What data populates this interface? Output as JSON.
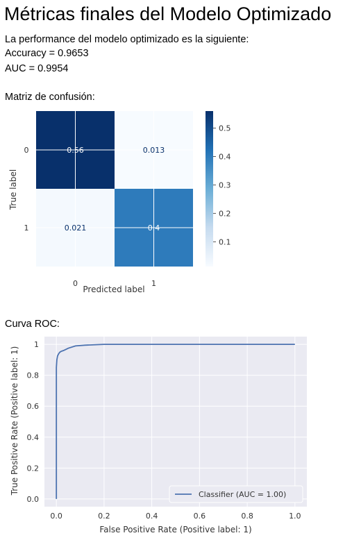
{
  "page": {
    "title": "Métricas finales del Modelo Optimizado",
    "intro": "La performance del modelo optimizado es la siguiente:",
    "accuracy_line": "Accuracy = 0.9653",
    "auc_line": "AUC = 0.9954",
    "cm_label": "Matriz de confusión:",
    "roc_label": "Curva ROC:"
  },
  "chart_data": [
    {
      "type": "heatmap",
      "xlabel": "Predicted label",
      "ylabel": "True label",
      "x_categories": [
        "0",
        "1"
      ],
      "y_categories": [
        "0",
        "1"
      ],
      "values": [
        [
          0.56,
          0.013
        ],
        [
          0.021,
          0.4
        ]
      ],
      "value_labels": [
        [
          "0.56",
          "0.013"
        ],
        [
          "0.021",
          "0.4"
        ]
      ],
      "colormap": "Blues",
      "colors": {
        "low": "#f7fbff",
        "high": "#08306b"
      },
      "colorbar": {
        "ticks": [
          0.1,
          0.2,
          0.3,
          0.4,
          0.5
        ],
        "labels": [
          "0.1",
          "0.2",
          "0.3",
          "0.4",
          "0.5"
        ],
        "range": [
          0.013,
          0.56
        ]
      },
      "grid": true
    },
    {
      "type": "line",
      "xlabel": "False Positive Rate (Positive label: 1)",
      "ylabel": "True Positive Rate (Positive label: 1)",
      "xlim": [
        -0.05,
        1.05
      ],
      "ylim": [
        -0.05,
        1.05
      ],
      "xticks": [
        0.0,
        0.2,
        0.4,
        0.6,
        0.8,
        1.0
      ],
      "xtick_labels": [
        "0.0",
        "0.2",
        "0.4",
        "0.6",
        "0.8",
        "1.0"
      ],
      "yticks": [
        0.0,
        0.2,
        0.4,
        0.6,
        0.8,
        1.0
      ],
      "ytick_labels": [
        "0.0",
        "0.2",
        "0.4",
        "0.6",
        "0.8",
        "1"
      ],
      "grid": true,
      "background": "#eaeaf2",
      "legend": {
        "position": "bottom-right",
        "entries": [
          "Classifier (AUC = 1.00)"
        ]
      },
      "series": [
        {
          "name": "Classifier (AUC = 1.00)",
          "color": "#4c72b0",
          "x": [
            0.0,
            0.0,
            0.002,
            0.005,
            0.01,
            0.015,
            0.02,
            0.03,
            0.05,
            0.08,
            0.12,
            0.2,
            0.3,
            1.0
          ],
          "y": [
            0.0,
            0.85,
            0.9,
            0.925,
            0.94,
            0.95,
            0.955,
            0.96,
            0.975,
            0.99,
            0.995,
            1.0,
            1.0,
            1.0
          ]
        }
      ]
    }
  ]
}
